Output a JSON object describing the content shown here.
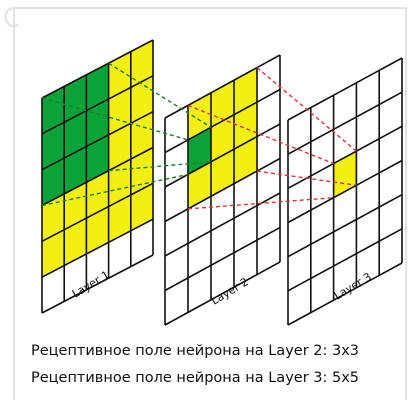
{
  "colors": {
    "green": "#0aa33a",
    "yellow": "#f3ef13",
    "white": "#ffffff",
    "grid_line": "#111111",
    "green_dash": "#1f7f2a",
    "red_dash": "#d9363e",
    "frame": "#e2e2e2"
  },
  "layers": [
    {
      "label": "Layer 1",
      "rows": 6,
      "cols": 5,
      "green_region": {
        "row_from": 0,
        "row_to": 3,
        "col_from": 0,
        "col_to": 3
      },
      "yellow_region": {
        "row_from": 0,
        "row_to": 5,
        "col_from": 0,
        "col_to": 5
      }
    },
    {
      "label": "Layer 2",
      "rows": 6,
      "cols": 5,
      "green_region": {
        "row_from": 1,
        "row_to": 2,
        "col_from": 1,
        "col_to": 2
      },
      "yellow_region": {
        "row_from": 0,
        "row_to": 3,
        "col_from": 1,
        "col_to": 4
      }
    },
    {
      "label": "Layer 3",
      "rows": 6,
      "cols": 5,
      "yellow_region": {
        "row_from": 2,
        "row_to": 3,
        "col_from": 2,
        "col_to": 3
      }
    }
  ],
  "captions": [
    "Рецептивное поле нейрона на Layer 2: 3x3",
    "Рецептивное поле нейрона на Layer 3: 5x5"
  ]
}
